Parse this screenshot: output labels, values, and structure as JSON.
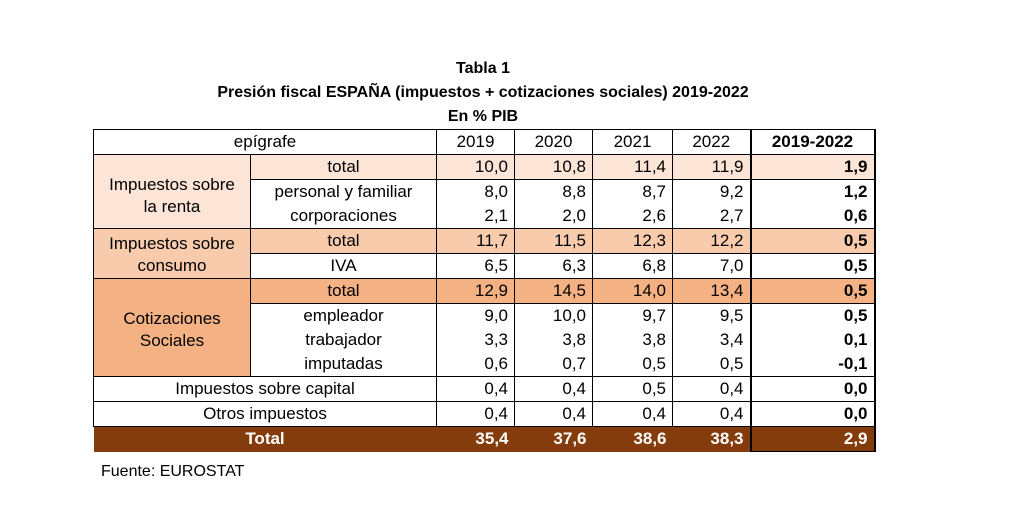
{
  "title": "Tabla 1",
  "subtitle": "Presión fiscal ESPAÑA (impuestos + cotizaciones sociales) 2019-2022",
  "unit": "En % PIB",
  "header": {
    "epigrafe": "epígrafe",
    "y2019": "2019",
    "y2020": "2020",
    "y2021": "2021",
    "y2022": "2022",
    "diff": "2019-2022"
  },
  "groups": {
    "renta": {
      "label1": "Impuestos sobre",
      "label2": "la renta"
    },
    "consumo": {
      "label1": "Impuestos sobre",
      "label2": "consumo"
    },
    "cotizaciones": {
      "label1": "Cotizaciones",
      "label2": "Sociales"
    }
  },
  "rows": [
    {
      "label": "total",
      "v2019": "10,0",
      "v2020": "10,8",
      "v2021": "11,4",
      "v2022": "11,9",
      "diff": "1,9"
    },
    {
      "label": "personal y familiar",
      "v2019": "8,0",
      "v2020": "8,8",
      "v2021": "8,7",
      "v2022": "9,2",
      "diff": "1,2"
    },
    {
      "label": "corporaciones",
      "v2019": "2,1",
      "v2020": "2,0",
      "v2021": "2,6",
      "v2022": "2,7",
      "diff": "0,6"
    },
    {
      "label": "total",
      "v2019": "11,7",
      "v2020": "11,5",
      "v2021": "12,3",
      "v2022": "12,2",
      "diff": "0,5"
    },
    {
      "label": "IVA",
      "v2019": "6,5",
      "v2020": "6,3",
      "v2021": "6,8",
      "v2022": "7,0",
      "diff": "0,5"
    },
    {
      "label": "total",
      "v2019": "12,9",
      "v2020": "14,5",
      "v2021": "14,0",
      "v2022": "13,4",
      "diff": "0,5"
    },
    {
      "label": "empleador",
      "v2019": "9,0",
      "v2020": "10,0",
      "v2021": "9,7",
      "v2022": "9,5",
      "diff": "0,5"
    },
    {
      "label": "trabajador",
      "v2019": "3,3",
      "v2020": "3,8",
      "v2021": "3,8",
      "v2022": "3,4",
      "diff": "0,1"
    },
    {
      "label": "imputadas",
      "v2019": "0,6",
      "v2020": "0,7",
      "v2021": "0,5",
      "v2022": "0,5",
      "diff": "-0,1"
    },
    {
      "label": "Impuestos sobre capital",
      "v2019": "0,4",
      "v2020": "0,4",
      "v2021": "0,5",
      "v2022": "0,4",
      "diff": "0,0"
    },
    {
      "label": "Otros impuestos",
      "v2019": "0,4",
      "v2020": "0,4",
      "v2021": "0,4",
      "v2022": "0,4",
      "diff": "0,0"
    }
  ],
  "total": {
    "label": "Total",
    "v2019": "35,4",
    "v2020": "37,6",
    "v2021": "38,6",
    "v2022": "38,3",
    "diff": "2,9"
  },
  "source": "Fuente: EUROSTAT",
  "colors": {
    "renta": "#fce4d6",
    "consumo": "#f8cbad",
    "cotizaciones": "#f4b183",
    "total": "#843c0c"
  }
}
